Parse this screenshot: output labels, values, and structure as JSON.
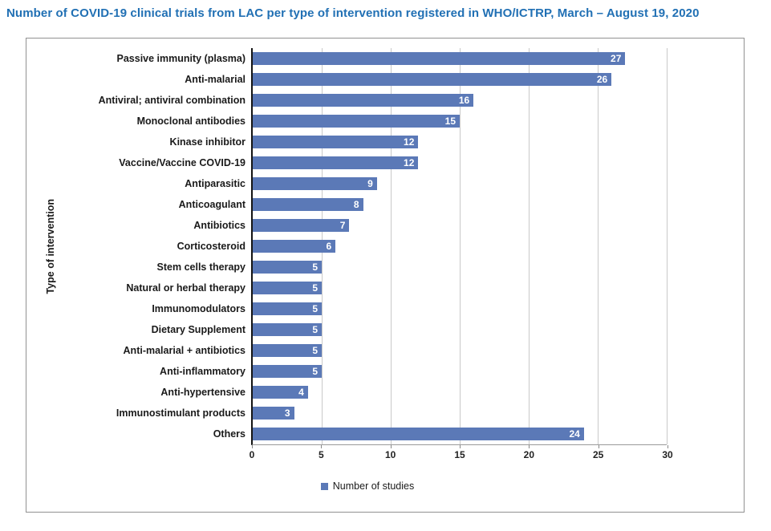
{
  "chart_data": {
    "type": "bar",
    "orientation": "horizontal",
    "title": "Number of COVID-19 clinical trials from LAC per type of intervention registered in WHO/ICTRP, March – August 19, 2020",
    "categories": [
      "Passive immunity (plasma)",
      "Anti-malarial",
      "Antiviral; antiviral combination",
      "Monoclonal antibodies",
      "Kinase inhibitor",
      "Vaccine/Vaccine COVID-19",
      "Antiparasitic",
      "Anticoagulant",
      "Antibiotics",
      "Corticosteroid",
      "Stem cells therapy",
      "Natural or herbal therapy",
      "Immunomodulators",
      "Dietary Supplement",
      "Anti-malarial + antibiotics",
      "Anti-inflammatory",
      "Anti-hypertensive",
      "Immunostimulant products",
      "Others"
    ],
    "values": [
      27,
      26,
      16,
      15,
      12,
      12,
      9,
      8,
      7,
      6,
      5,
      5,
      5,
      5,
      5,
      5,
      4,
      3,
      24
    ],
    "xlabel": "Number of studies",
    "ylabel": "Type of intervention",
    "xlim": [
      0,
      30
    ],
    "xticks": [
      0,
      5,
      10,
      15,
      20,
      25,
      30
    ],
    "grid": "vertical",
    "legend": {
      "position": "bottom",
      "items": [
        "Number of studies"
      ]
    },
    "colors": {
      "bar": "#5b79b7",
      "title": "#2170b4",
      "value_label": "#ffffff",
      "gridline": "#c9c9c9",
      "frame_border": "#919191"
    }
  }
}
